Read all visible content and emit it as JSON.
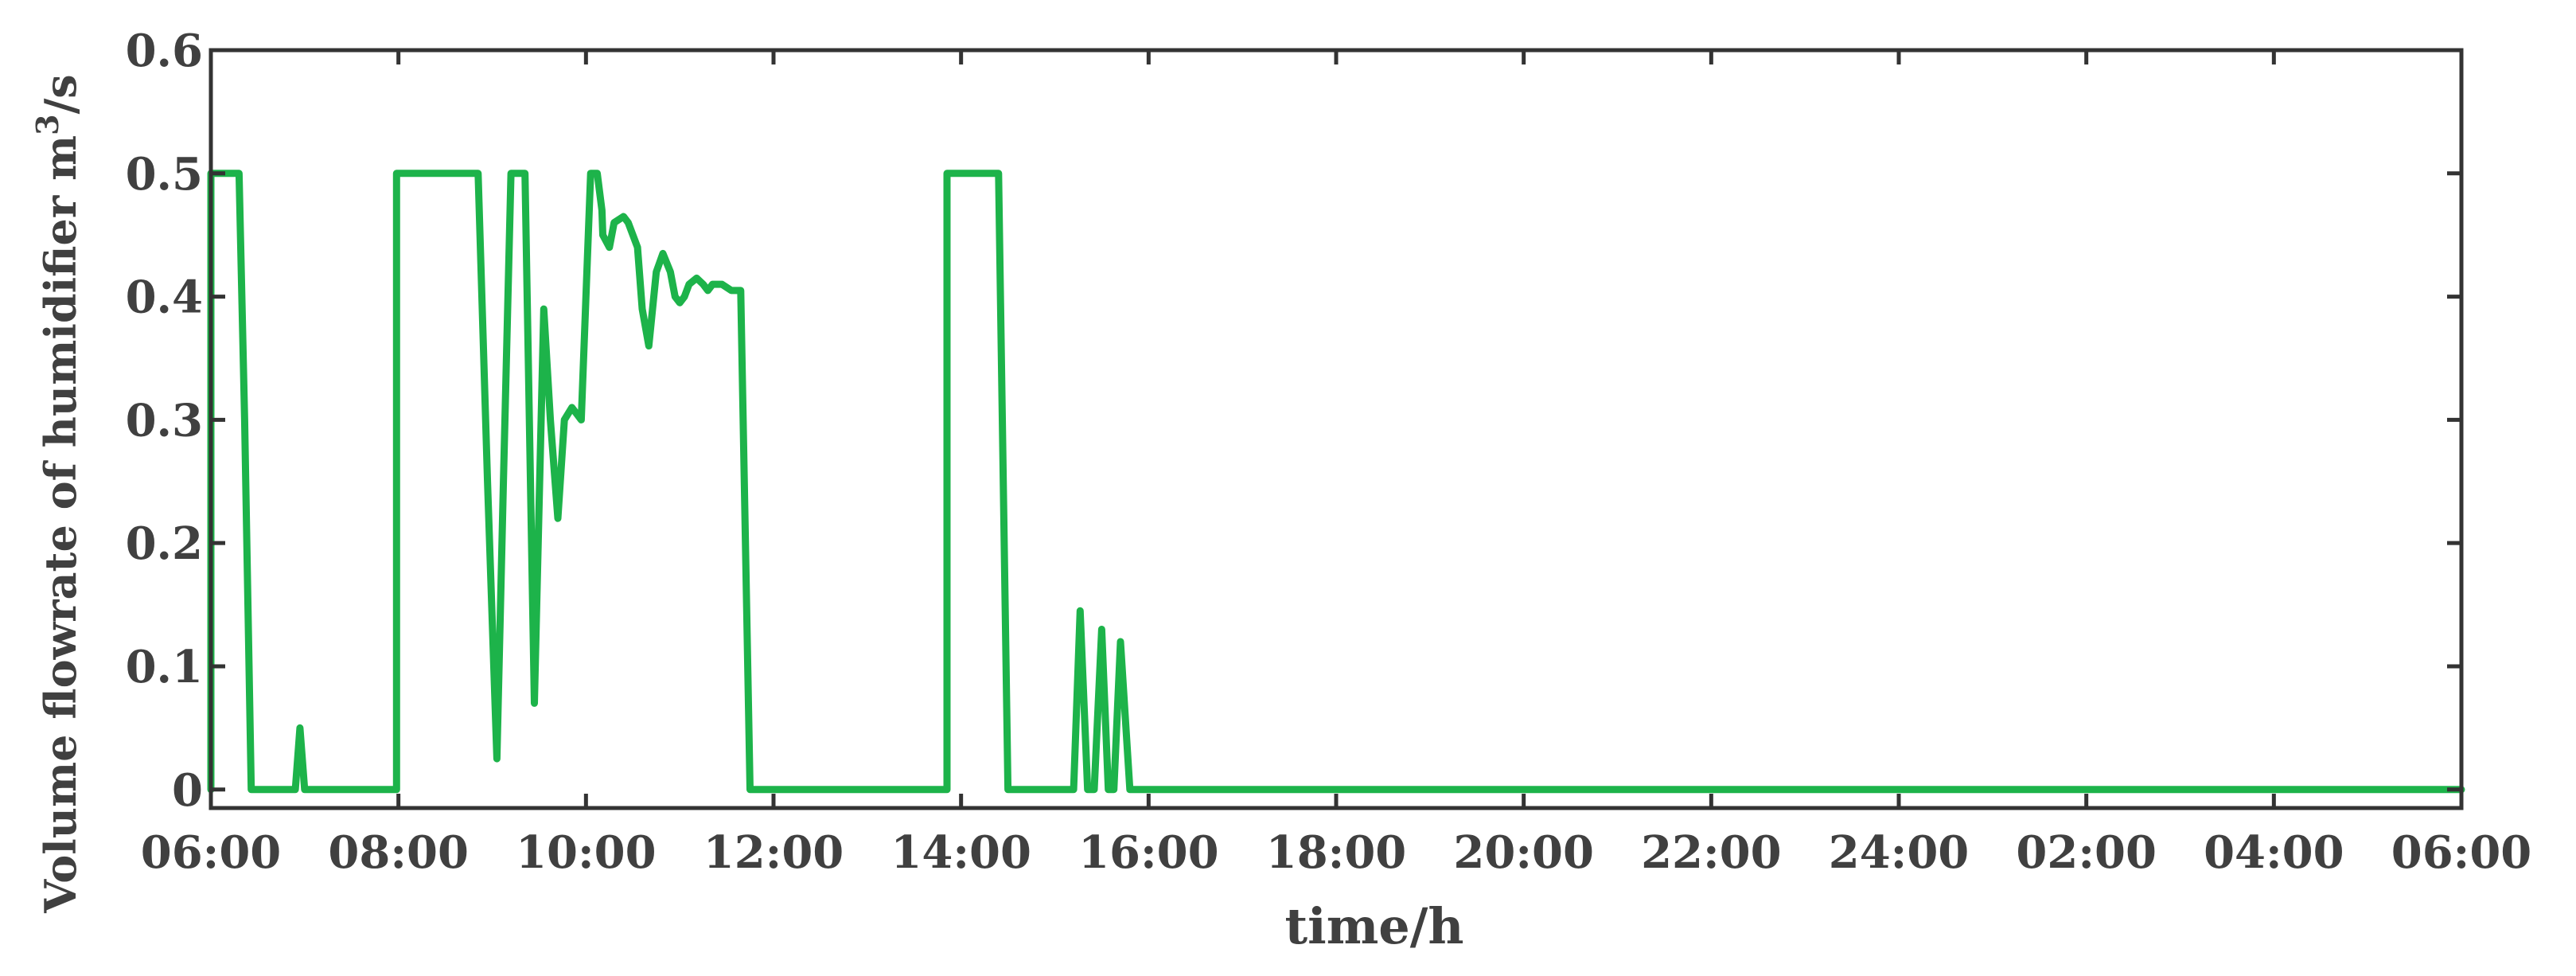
{
  "chart_data": {
    "type": "line",
    "title": "",
    "xlabel": "time/h",
    "ylabel_prefix": "Volume flowrate of humidifier  m",
    "ylabel_sup": "3",
    "ylabel_suffix": "/s",
    "xlim": [
      0,
      24
    ],
    "ylim": [
      -0.015,
      0.6
    ],
    "x_ticks": [
      0,
      2,
      4,
      6,
      8,
      10,
      12,
      14,
      16,
      18,
      20,
      22,
      24
    ],
    "x_tick_labels": [
      "06:00",
      "08:00",
      "10:00",
      "12:00",
      "14:00",
      "16:00",
      "18:00",
      "20:00",
      "22:00",
      "24:00",
      "02:00",
      "04:00",
      "06:00"
    ],
    "y_ticks": [
      0,
      0.1,
      0.2,
      0.3,
      0.4,
      0.5,
      0.6
    ],
    "y_tick_labels": [
      "0",
      "0.1",
      "0.2",
      "0.3",
      "0.4",
      "0.5",
      "0.6"
    ],
    "grid": false,
    "line_color": "#1db34a",
    "series": [
      {
        "x": [
          0,
          0,
          0.3,
          0.36,
          0.43,
          0.9,
          0.95,
          1.0,
          1.05,
          1.98,
          1.98,
          2.85,
          2.95,
          3.05,
          3.12,
          3.2,
          3.27,
          3.35,
          3.45,
          3.55,
          3.62,
          3.7,
          3.77,
          3.85,
          3.95,
          4.05,
          4.12,
          4.17,
          4.18,
          4.25,
          4.3,
          4.4,
          4.45,
          4.55,
          4.6,
          4.67,
          4.75,
          4.82,
          4.9,
          4.95,
          5.0,
          5.05,
          5.1,
          5.18,
          5.25,
          5.3,
          5.35,
          5.45,
          5.55,
          5.6,
          5.65,
          5.75,
          5.82,
          5.85,
          5.85,
          7.85,
          7.85,
          8.4,
          8.5,
          8.55,
          9.2,
          9.27,
          9.35,
          9.42,
          9.5,
          9.57,
          9.63,
          9.7,
          9.8,
          9.83,
          24
        ],
        "y": [
          0,
          0.5,
          0.5,
          0.3,
          0,
          0,
          0.05,
          0,
          0,
          0,
          0.5,
          0.5,
          0.25,
          0.025,
          0.25,
          0.5,
          0.5,
          0.5,
          0.07,
          0.39,
          0.3,
          0.22,
          0.3,
          0.31,
          0.3,
          0.5,
          0.5,
          0.47,
          0.45,
          0.44,
          0.46,
          0.465,
          0.46,
          0.44,
          0.39,
          0.36,
          0.42,
          0.435,
          0.42,
          0.4,
          0.395,
          0.4,
          0.41,
          0.415,
          0.41,
          0.405,
          0.41,
          0.41,
          0.405,
          0.405,
          0.405,
          0,
          0,
          0,
          0,
          0,
          0.5,
          0.5,
          0,
          0,
          0,
          0.145,
          0,
          0,
          0.13,
          0,
          0,
          0.12,
          0,
          0,
          0
        ]
      }
    ]
  }
}
